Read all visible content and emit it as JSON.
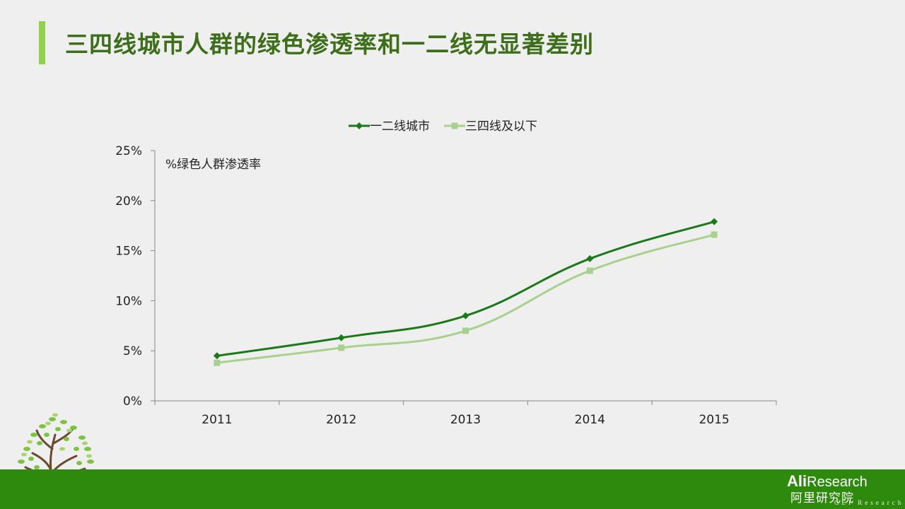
{
  "slide": {
    "title": "三四线城市人群的绿色渗透率和一二线无显著差别"
  },
  "colors": {
    "accent": "#92d050",
    "title": "#3d6f1a",
    "series1": "#1a7a1a",
    "series2": "#a9d18e",
    "footer": "#2e8a0d"
  },
  "chart_data": {
    "type": "line",
    "title": "",
    "xlabel": "",
    "ylabel": "%绿色人群渗透率",
    "categories": [
      "2011",
      "2012",
      "2013",
      "2014",
      "2015"
    ],
    "series": [
      {
        "name": "一二线城市",
        "values": [
          4.5,
          6.3,
          8.5,
          14.2,
          17.9
        ],
        "marker": "diamond"
      },
      {
        "name": "三四线及以下",
        "values": [
          3.8,
          5.3,
          7.0,
          13.0,
          16.6
        ],
        "marker": "square"
      }
    ],
    "ylim": [
      0,
      25
    ],
    "yticks": [
      "0%",
      "5%",
      "10%",
      "15%",
      "20%",
      "25%"
    ],
    "grid": false,
    "legend": "top-center"
  },
  "footer": {
    "logo_en_bold": "Ali",
    "logo_en_rest": "Research",
    "logo_cn": "阿里研究院",
    "logo_tiny": "GEI Research"
  }
}
